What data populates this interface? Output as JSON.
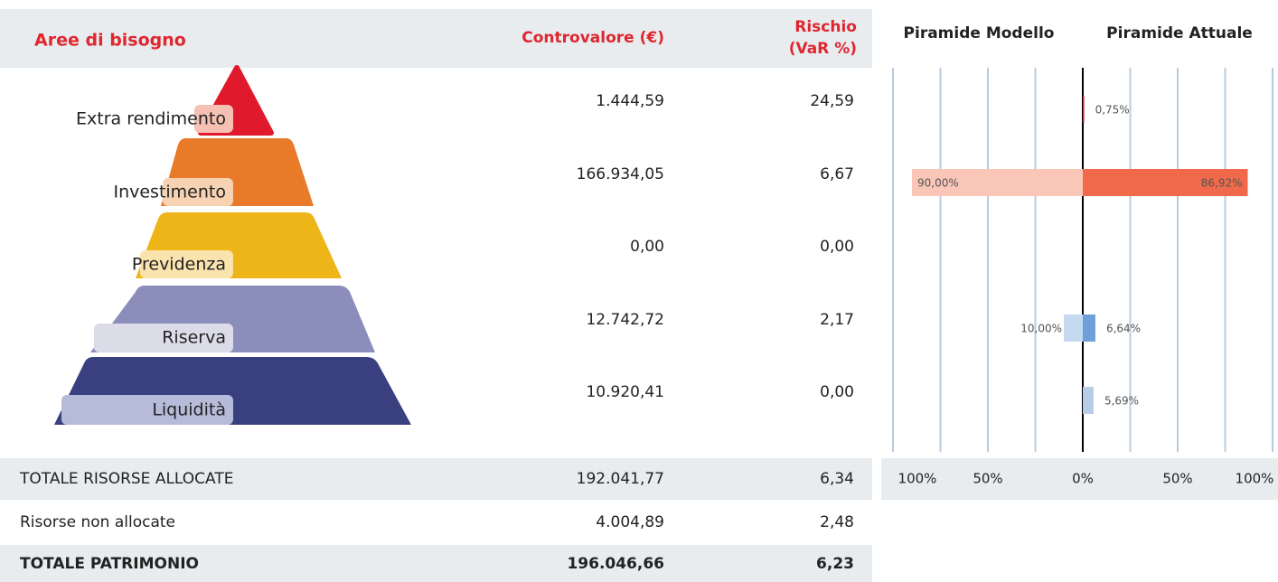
{
  "table": {
    "header": [
      "Aree di bisogno",
      "Controvalore (€)",
      "Rischio (VaR %)"
    ],
    "rows": [
      [
        "Extra rendimento",
        "1.444,59",
        "24,59"
      ],
      [
        "Investimento",
        "166.934,05",
        "6,67"
      ],
      [
        "Previdenza",
        "0,00",
        "0,00"
      ],
      [
        "Riserva",
        "12.742,72",
        "2,17"
      ],
      [
        "Liquidità",
        "10.920,41",
        "0,00"
      ]
    ],
    "totals": [
      [
        "TOTALE RISORSE ALLOCATE",
        "192.041,77",
        "6,34"
      ],
      [
        "Risorse non allocate",
        "4.004,89",
        "2,48"
      ],
      [
        "TOTALE PATRIMONIO",
        "196.046,66",
        "6,23"
      ]
    ]
  },
  "chart_data": {
    "type": "butterfly",
    "series": [
      {
        "name": "Piramide Modello",
        "side": "left",
        "colors": [
          "#f9c6b8",
          "#f9c6b8",
          "#f9c6b8",
          "#c5d9f1",
          "#c5d9f1"
        ],
        "values": [
          null,
          90.0,
          null,
          10.0,
          null
        ],
        "value_labels": [
          null,
          "90,00%",
          null,
          "10,00%",
          null
        ]
      },
      {
        "name": "Piramide Attuale",
        "side": "right",
        "colors": [
          "#e0192d",
          "#f0694a",
          "#eeb518",
          "#6f9fd8",
          "#b9cde9"
        ],
        "values": [
          0.75,
          86.92,
          null,
          6.64,
          5.69
        ],
        "value_labels": [
          "0,75%",
          "86,92%",
          null,
          "6,64%",
          "5,69%"
        ]
      }
    ],
    "xlim": [
      -100,
      100
    ],
    "xticks": [
      {
        "value": -100,
        "label": "100%"
      },
      {
        "value": -50,
        "label": "50%"
      },
      {
        "value": 0,
        "label": "0%"
      },
      {
        "value": 50,
        "label": "50%"
      },
      {
        "value": 100,
        "label": "100%"
      }
    ],
    "minor_xticks": [
      -75,
      -25,
      25,
      75
    ],
    "grid": true
  }
}
